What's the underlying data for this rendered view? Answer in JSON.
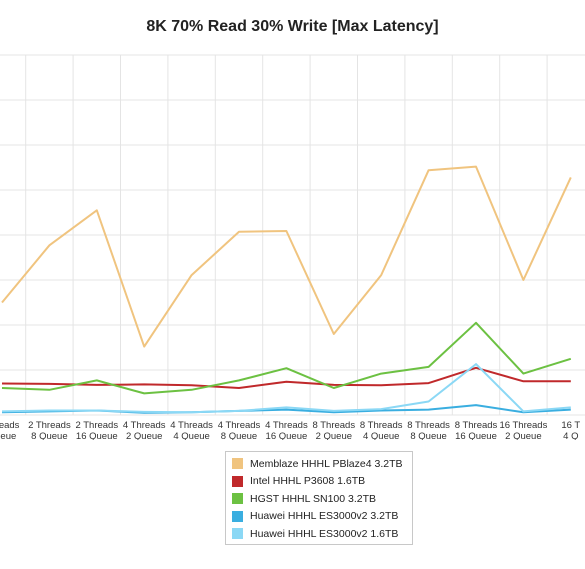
{
  "chart_data": {
    "type": "line",
    "title": "8K 70% Read 30% Write [Max Latency]",
    "xlabel": "",
    "ylabel": "",
    "grid": true,
    "legend_position": "bottom",
    "categories": [
      [
        "Threads",
        "Queue"
      ],
      [
        "2 Threads",
        "8 Queue"
      ],
      [
        "2 Threads",
        "16 Queue"
      ],
      [
        "4 Threads",
        "2 Queue"
      ],
      [
        "4 Threads",
        "4 Queue"
      ],
      [
        "4 Threads",
        "8 Queue"
      ],
      [
        "4 Threads",
        "16 Queue"
      ],
      [
        "8 Threads",
        "2 Queue"
      ],
      [
        "8 Threads",
        "4 Queue"
      ],
      [
        "8 Threads",
        "8 Queue"
      ],
      [
        "8 Threads",
        "16 Queue"
      ],
      [
        "16 Threads",
        "2 Queue"
      ],
      [
        "16 T",
        "4 Q"
      ]
    ],
    "ylim": [
      0,
      8
    ],
    "series": [
      {
        "name": "Memblaze HHHL PBlaze4 3.2TB",
        "color": "#f0c47f",
        "values": [
          2.5,
          3.77,
          4.55,
          1.52,
          3.11,
          4.07,
          4.09,
          1.8,
          3.11,
          5.44,
          5.52,
          3.0,
          5.28
        ]
      },
      {
        "name": "Intel HHHL P3608 1.6TB",
        "color": "#c0292b",
        "values": [
          0.7,
          0.69,
          0.67,
          0.68,
          0.66,
          0.6,
          0.74,
          0.67,
          0.66,
          0.71,
          1.05,
          0.75,
          0.75
        ]
      },
      {
        "name": "HGST HHHL SN100 3.2TB",
        "color": "#6cc142",
        "values": [
          0.6,
          0.56,
          0.77,
          0.48,
          0.56,
          0.77,
          1.04,
          0.6,
          0.92,
          1.07,
          2.05,
          0.92,
          1.25
        ]
      },
      {
        "name": "Huawei HHHL ES3000v2 3.2TB",
        "color": "#3aaee0",
        "values": [
          0.06,
          0.08,
          0.1,
          0.05,
          0.06,
          0.09,
          0.12,
          0.06,
          0.1,
          0.12,
          0.22,
          0.06,
          0.12
        ]
      },
      {
        "name": "Huawei HHHL ES3000v2 1.6TB",
        "color": "#8bd8f5",
        "values": [
          0.08,
          0.1,
          0.1,
          0.07,
          0.06,
          0.09,
          0.17,
          0.09,
          0.13,
          0.3,
          1.13,
          0.08,
          0.17
        ]
      }
    ]
  }
}
